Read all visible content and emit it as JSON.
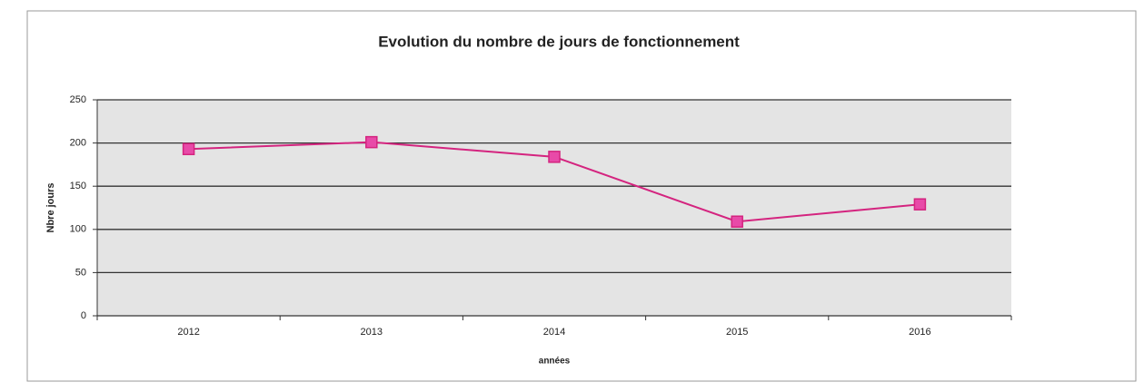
{
  "chart_data": {
    "type": "line",
    "title": "Evolution du nombre de jours de fonctionnement",
    "x_label": "années",
    "y_label": "Nbre jours",
    "categories": [
      "2012",
      "2013",
      "2014",
      "2015",
      "2016"
    ],
    "series": [
      {
        "name": "Nbre jours",
        "color": "#d4247f",
        "values": [
          193,
          201,
          184,
          109,
          129
        ]
      }
    ],
    "ylim": [
      0,
      250
    ],
    "yticks": [
      0,
      50,
      100,
      150,
      200,
      250
    ],
    "grid": true
  }
}
